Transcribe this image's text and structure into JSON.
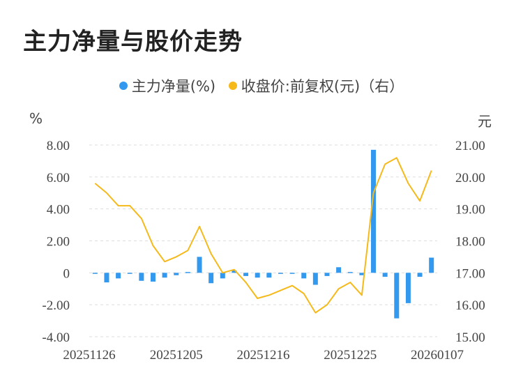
{
  "title": "主力净量与股价走势",
  "colors": {
    "bar": "#3399ee",
    "line": "#f5b91a",
    "grid": "#dddddd"
  },
  "chart_data": {
    "type": "bar+line",
    "title": "主力净量与股价走势",
    "legend_position": "top",
    "grid": true,
    "series": [
      {
        "name": "主力净量(%)",
        "type": "bar",
        "axis": "left",
        "color": "#3399ee",
        "values": [
          -0.05,
          -0.6,
          -0.35,
          -0.05,
          -0.5,
          -0.55,
          -0.3,
          -0.15,
          0.05,
          1.0,
          -0.65,
          -0.35,
          0.15,
          -0.2,
          -0.3,
          -0.3,
          -0.05,
          -0.05,
          -0.35,
          -0.75,
          -0.2,
          0.35,
          0.05,
          -0.15,
          7.7,
          -0.25,
          -2.85,
          -1.9,
          -0.25,
          0.95
        ]
      },
      {
        "name": "收盘价:前复权(元)（右）",
        "type": "line",
        "axis": "right",
        "color": "#f5b91a",
        "values": [
          19.8,
          19.5,
          19.1,
          19.1,
          18.7,
          17.85,
          17.35,
          17.5,
          17.7,
          18.45,
          17.6,
          17.0,
          17.1,
          16.7,
          16.2,
          16.3,
          16.45,
          16.6,
          16.35,
          15.75,
          16.0,
          16.5,
          16.7,
          16.3,
          19.5,
          20.4,
          20.6,
          19.8,
          19.25,
          20.2
        ]
      }
    ],
    "x_tick_labels": [
      "20251126",
      "20251205",
      "20251216",
      "20251225",
      "20260107"
    ],
    "y_left": {
      "unit": "%",
      "ylim": [
        -4,
        8
      ],
      "ticks": [
        "8.00",
        "6.00",
        "4.00",
        "2.00",
        "0",
        "-2.00",
        "-4.00"
      ]
    },
    "y_right": {
      "unit": "元",
      "ylim": [
        15,
        21
      ],
      "ticks": [
        "21.00",
        "20.00",
        "19.00",
        "18.00",
        "17.00",
        "16.00",
        "15.00"
      ]
    }
  }
}
